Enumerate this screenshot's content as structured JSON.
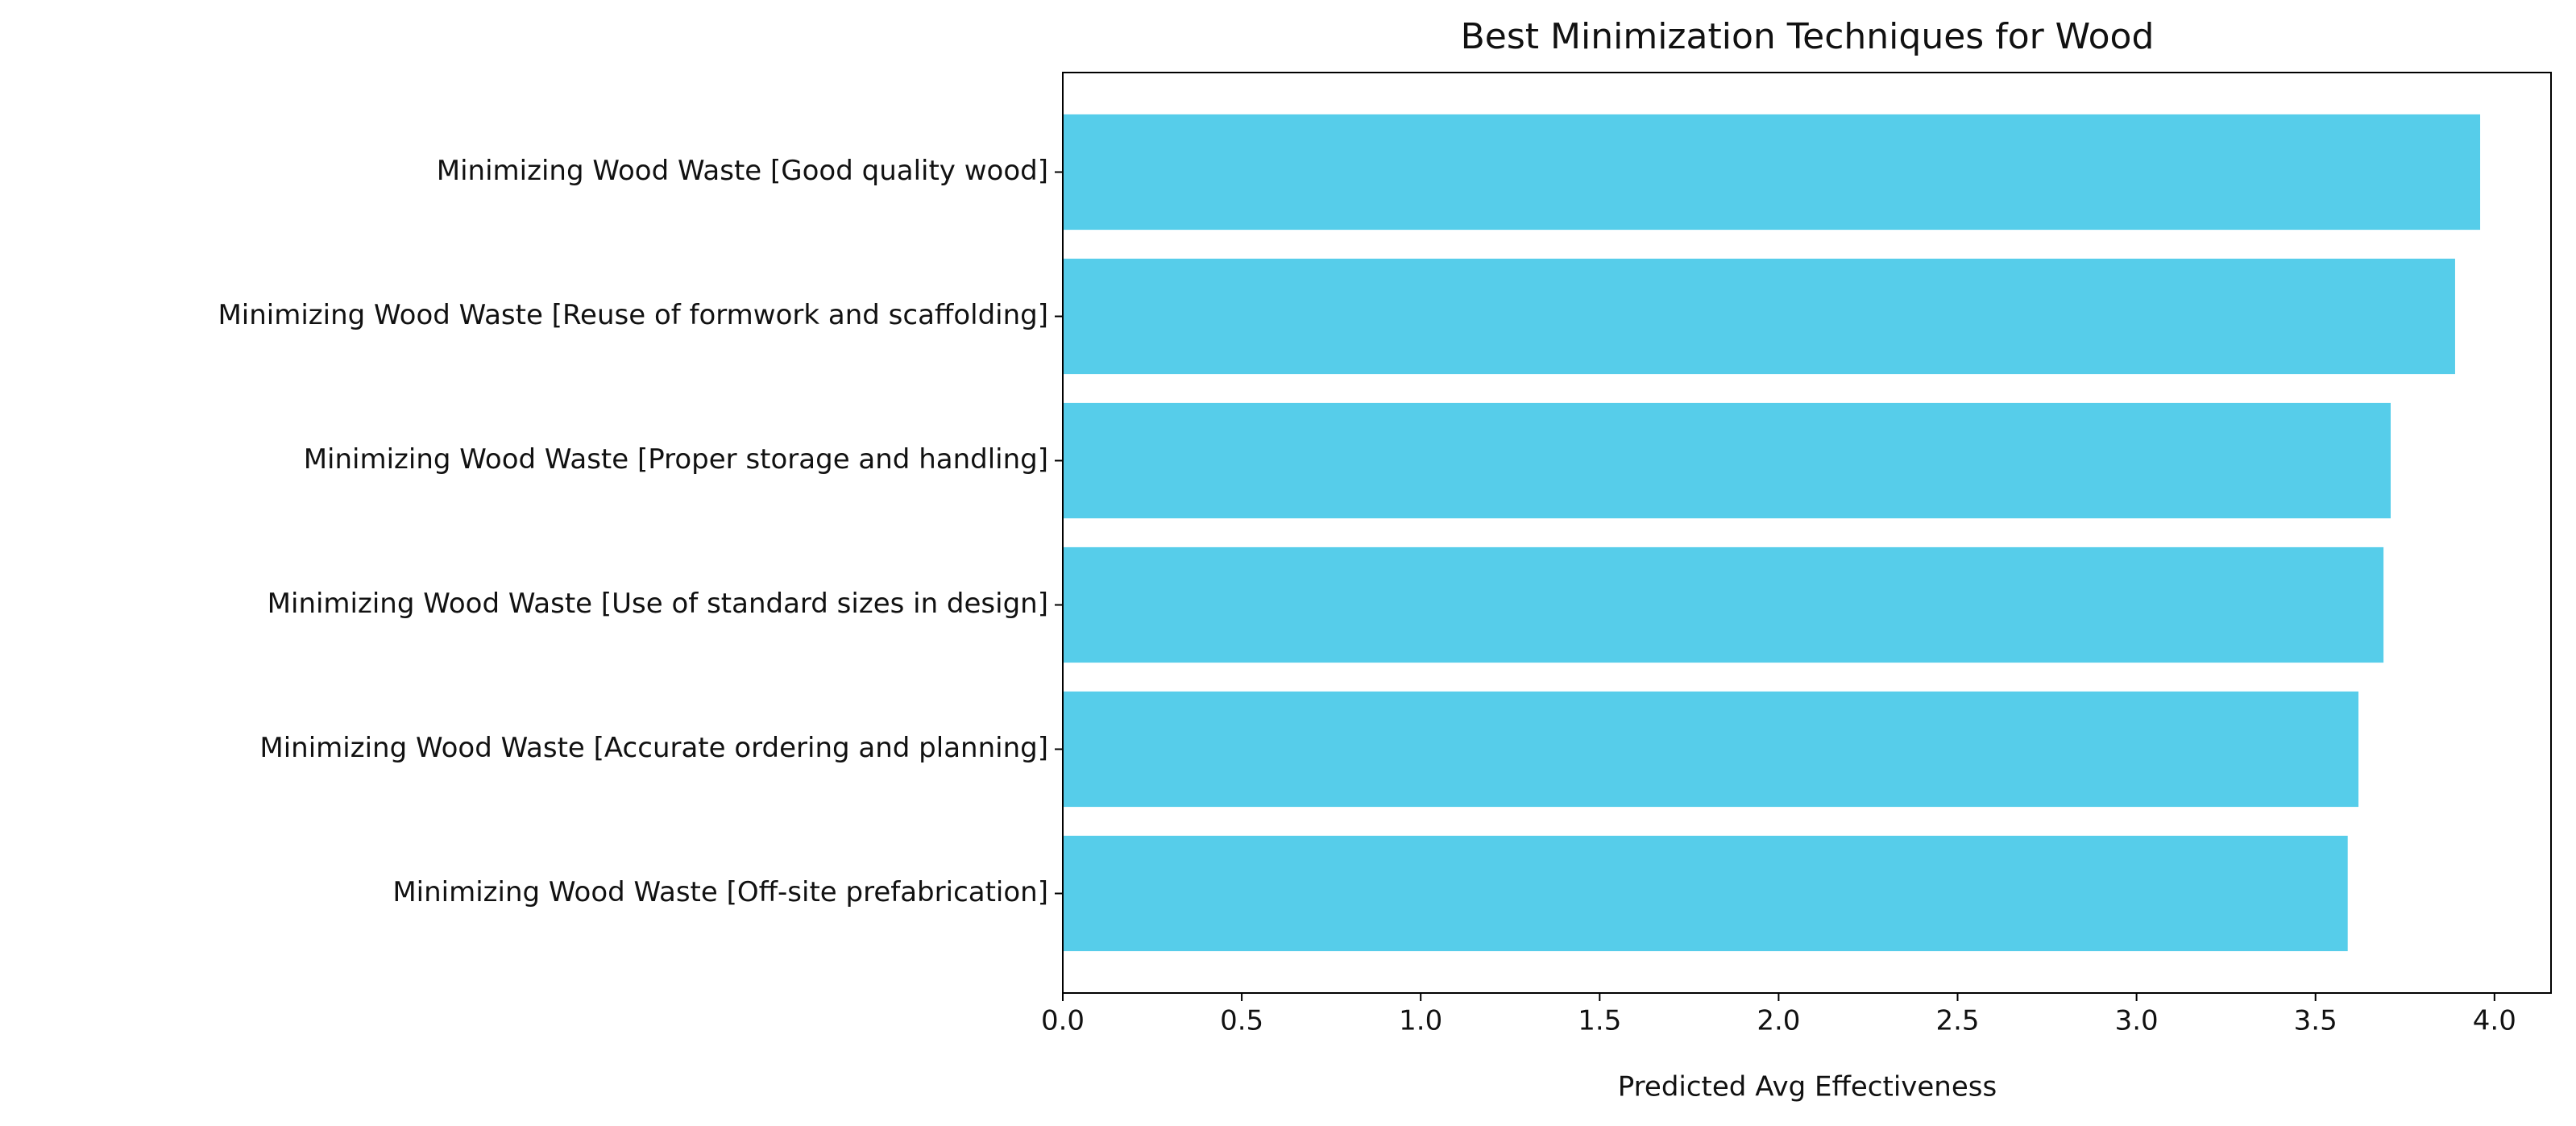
{
  "chart_data": {
    "type": "barh",
    "title": "Best Minimization Techniques for Wood",
    "xlabel": "Predicted Avg Effectiveness",
    "categories": [
      "Minimizing Wood Waste [Good quality wood]",
      "Minimizing Wood Waste [Reuse of formwork and scaffolding]",
      "Minimizing Wood Waste [Proper storage and handling]",
      "Minimizing Wood Waste [Use of standard sizes in design]",
      "Minimizing Wood Waste [Accurate ordering and planning]",
      "Minimizing Wood Waste [Off-site prefabrication]"
    ],
    "values": [
      3.96,
      3.89,
      3.71,
      3.69,
      3.62,
      3.59
    ],
    "color": "#56cdea",
    "xlim": [
      0,
      4.158
    ],
    "xticks": [
      {
        "value": 0,
        "label": "0.0"
      },
      0.5,
      {
        "value": 1,
        "label": "1.0"
      },
      1.5,
      {
        "value": 2,
        "label": "2.0"
      },
      2.5,
      {
        "value": 3,
        "label": "3.0"
      },
      3.5,
      {
        "value": 4,
        "label": "4.0"
      }
    ],
    "grid": false
  }
}
